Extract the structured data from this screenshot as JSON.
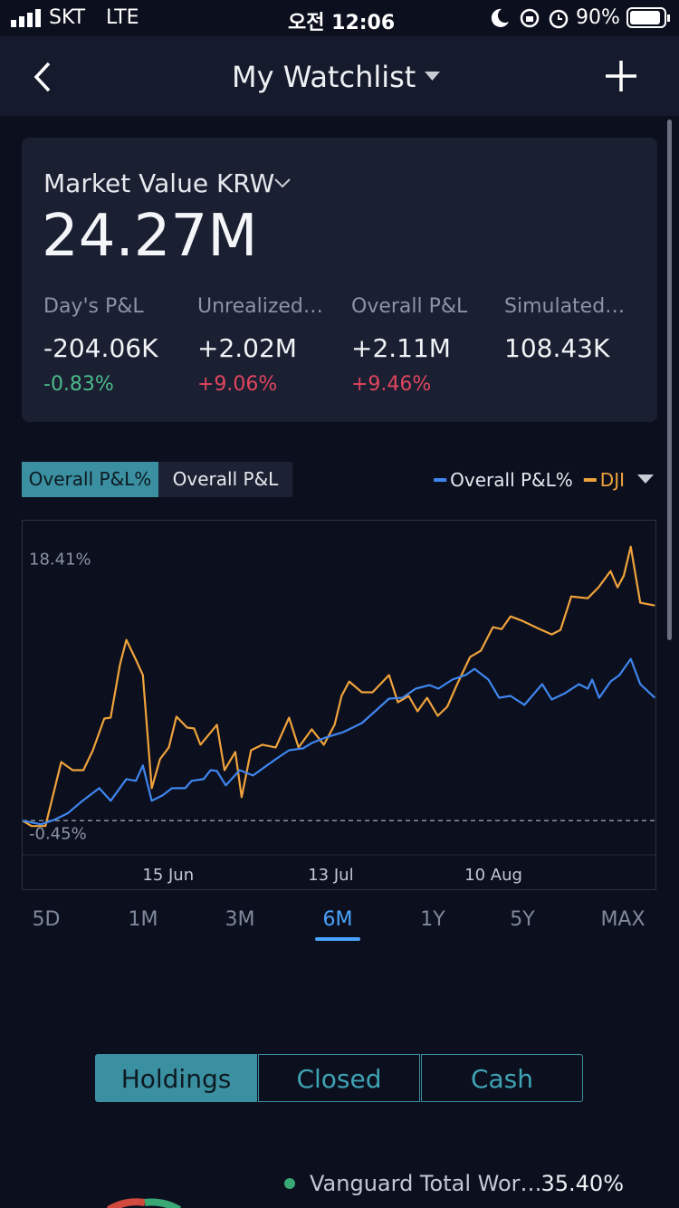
{
  "status_bar": {
    "carrier": "SKT",
    "network": "LTE",
    "time": "오전 12:06",
    "battery": "90%"
  },
  "header": {
    "title": "My Watchlist"
  },
  "summary": {
    "label": "Market Value KRW",
    "value": "24.27M",
    "stats": [
      {
        "label": "Day's P&L",
        "value": "-204.06K",
        "change": "-0.83%"
      },
      {
        "label": "Unrealized…",
        "value": "+2.02M",
        "change": "+9.06%"
      },
      {
        "label": "Overall P&L",
        "value": "+2.11M",
        "change": "+9.46%"
      },
      {
        "label": "Simulated…",
        "value": "108.43K"
      }
    ]
  },
  "chart_tabs": [
    "Overall P&L%",
    "Overall P&L"
  ],
  "selected_chart_tab": 0,
  "chart_data": {
    "type": "line",
    "xlim": [
      0,
      100
    ],
    "ylim": [
      -2.8,
      20.2
    ],
    "xticks": [
      {
        "value": 23,
        "label": "15 Jun"
      },
      {
        "value": 48.7,
        "label": "13 Jul"
      },
      {
        "value": 74.4,
        "label": "10 Aug"
      }
    ],
    "yticks": [
      {
        "value": 18.41,
        "label": "18.41%"
      },
      {
        "value": -0.45,
        "label": "-0.45%"
      }
    ],
    "legend": "top-right",
    "series": [
      {
        "name": "Overall P&L%",
        "color": "#3f86f0",
        "x": [
          0,
          2.9,
          5.0,
          7.1,
          9.3,
          12.1,
          13.9,
          16.4,
          17.9,
          19.0,
          20.4,
          22.1,
          23.6,
          25.7,
          26.7,
          28.6,
          29.7,
          30.7,
          32.1,
          34.3,
          36.4,
          38.6,
          40.0,
          42.1,
          44.3,
          45.7,
          47.9,
          50.7,
          53.6,
          55.7,
          57.9,
          60.0,
          62.1,
          64.3,
          65.7,
          67.9,
          70.0,
          71.4,
          73.6,
          75.3,
          77.1,
          79.3,
          82.1,
          83.6,
          85.7,
          87.9,
          89.3,
          90.0,
          91.1,
          92.9,
          94.3,
          96.1,
          97.6,
          99.9
        ],
        "values": [
          -0.45,
          -0.7,
          -0.39,
          0.05,
          0.86,
          1.79,
          0.92,
          2.41,
          2.29,
          3.35,
          0.92,
          1.29,
          1.79,
          1.79,
          2.29,
          2.41,
          3.03,
          2.97,
          1.98,
          3.03,
          2.66,
          3.35,
          3.78,
          4.4,
          4.53,
          4.9,
          5.28,
          5.65,
          6.27,
          7.08,
          7.95,
          8.01,
          8.64,
          8.88,
          8.64,
          9.26,
          9.57,
          10.0,
          9.26,
          8.01,
          8.14,
          7.52,
          8.95,
          7.89,
          8.32,
          8.95,
          8.64,
          9.26,
          8.01,
          9.13,
          9.57,
          10.69,
          8.95,
          8.01
        ]
      },
      {
        "name": "DJI",
        "color": "#f0a33c",
        "x": [
          0,
          1.4,
          3.6,
          6.1,
          7.9,
          9.6,
          11.1,
          12.9,
          13.9,
          15.4,
          16.4,
          17.9,
          19.0,
          20.4,
          21.7,
          23.1,
          24.3,
          26.0,
          27.1,
          28.1,
          30.7,
          31.9,
          33.6,
          34.6,
          36.1,
          37.9,
          40.0,
          42.1,
          43.6,
          45.7,
          47.6,
          49.3,
          50.4,
          51.6,
          53.6,
          55.3,
          57.9,
          59.3,
          61.0,
          62.4,
          63.9,
          65.6,
          67.1,
          68.6,
          70.7,
          72.4,
          74.3,
          75.7,
          77.1,
          79.0,
          81.4,
          83.6,
          85.0,
          86.7,
          89.3,
          91.0,
          92.9,
          94.0,
          95.0,
          96.1,
          97.6,
          99.9
        ],
        "values": [
          -0.45,
          -0.82,
          -0.82,
          3.59,
          3.03,
          3.03,
          4.4,
          6.58,
          6.64,
          10.32,
          12.0,
          10.63,
          9.57,
          1.79,
          3.78,
          4.59,
          6.71,
          5.96,
          5.9,
          4.78,
          6.15,
          3.03,
          4.28,
          1.17,
          4.4,
          4.78,
          4.59,
          6.64,
          4.59,
          5.84,
          4.78,
          6.15,
          8.14,
          9.13,
          8.39,
          8.39,
          9.57,
          7.7,
          8.14,
          7.08,
          8.01,
          6.77,
          7.39,
          8.88,
          10.81,
          11.25,
          12.87,
          12.74,
          13.61,
          13.3,
          12.8,
          12.37,
          12.68,
          14.98,
          14.86,
          15.61,
          16.73,
          15.61,
          16.41,
          18.41,
          14.55,
          14.36
        ]
      }
    ]
  },
  "periods": [
    "5D",
    "1M",
    "3M",
    "6M",
    "1Y",
    "5Y",
    "MAX"
  ],
  "selected_period": 3,
  "holdings_tabs": [
    "Holdings",
    "Closed",
    "Cash"
  ],
  "selected_holdings_tab": 0,
  "holdings": [
    {
      "name": "Vanguard Total Wor…",
      "weight": "35.40%"
    }
  ]
}
